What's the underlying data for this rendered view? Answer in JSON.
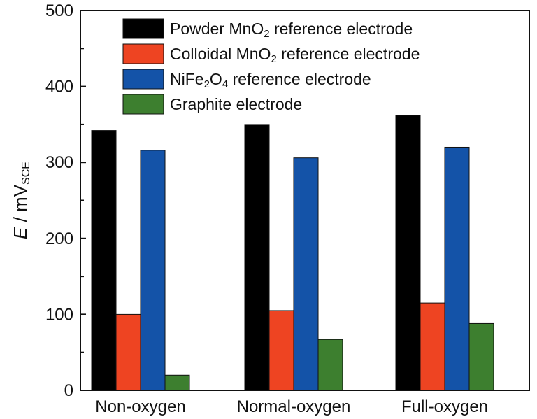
{
  "chart_data": {
    "type": "bar",
    "categories": [
      "Non-oxygen",
      "Normal-oxygen",
      "Full-oxygen"
    ],
    "series": [
      {
        "name": "Powder MnO2 reference electrode",
        "color": "#000000",
        "values": [
          342,
          350,
          362
        ]
      },
      {
        "name": "Colloidal MnO2 reference electrode",
        "color": "#ee4422",
        "values": [
          100,
          105,
          115
        ]
      },
      {
        "name": "NiFe2O4 reference electrode",
        "color": "#1453a8",
        "values": [
          316,
          306,
          320
        ]
      },
      {
        "name": "Graphite electrode",
        "color": "#3d7f2f",
        "values": [
          20,
          67,
          88
        ]
      }
    ],
    "ylabel": "E / mV_SCE",
    "ylim": [
      0,
      500
    ],
    "yticks": [
      0,
      100,
      200,
      300,
      400,
      500
    ],
    "legend_position": "top-center",
    "grid": false
  },
  "legend": [
    {
      "pre": "Powder MnO",
      "sub": "2",
      "post": " reference electrode"
    },
    {
      "pre": "Colloidal MnO",
      "sub": "2",
      "post": " reference electrode"
    },
    {
      "pre": "NiFe",
      "sub": "2",
      "mid": "O",
      "sub2": "4",
      "post": " reference electrode"
    },
    {
      "pre": "Graphite electrode",
      "sub": "",
      "post": ""
    }
  ],
  "ylabel_parts": {
    "italic": "E",
    "rest": " / mV",
    "sub": "SCE"
  }
}
